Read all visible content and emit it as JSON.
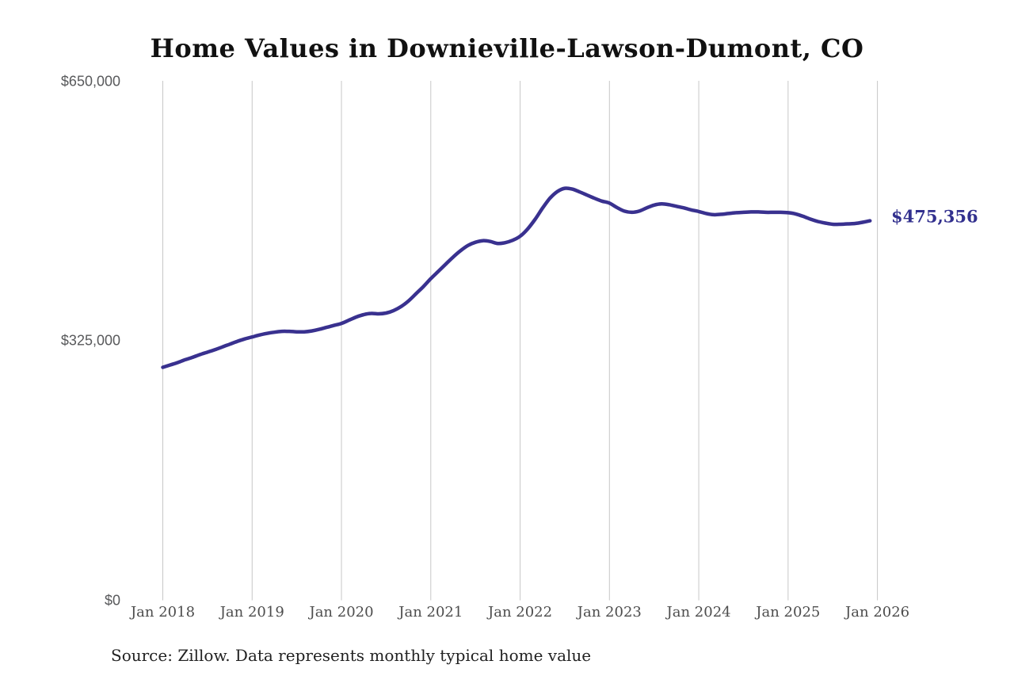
{
  "title": "Home Values in Downieville-Lawson-Dumont, CO",
  "source_note": "Source: Zillow. Data represents monthly typical home value",
  "end_label": "$475,356",
  "colors": {
    "line": "#39318f",
    "end_label_text": "#32308e",
    "title_text": "#111111",
    "y_axis_text": "#58595b",
    "x_axis_text": "#4d4d4d",
    "source_text": "#222222",
    "gridline": "#c7c7c7",
    "background": "#ffffff"
  },
  "chart_data": {
    "type": "line",
    "title": "Home Values in Downieville-Lawson-Dumont, CO",
    "x_interval": "monthly",
    "x_start_month": "2018-01",
    "x_end_month": "2025-12",
    "x_tick_labels": [
      "Jan 2018",
      "Jan 2019",
      "Jan 2020",
      "Jan 2021",
      "Jan 2022",
      "Jan 2023",
      "Jan 2024",
      "Jan 2025",
      "Jan 2026"
    ],
    "y_tick_labels": [
      "$0",
      "$325,000",
      "$650,000"
    ],
    "y_tick_values": [
      0,
      325000,
      650000
    ],
    "ylim": [
      0,
      650000
    ],
    "grid": "vertical-only",
    "legend": "none",
    "final_value": 475356,
    "series": [
      {
        "name": "Monthly typical home value",
        "color": "#39318f",
        "values": [
          292000,
          295000,
          298000,
          301500,
          304500,
          308000,
          311000,
          314000,
          317500,
          321000,
          324500,
          327500,
          330000,
          332500,
          334500,
          336000,
          337000,
          337000,
          336500,
          336500,
          337500,
          339500,
          342000,
          344500,
          347000,
          351000,
          355000,
          358000,
          359500,
          359000,
          360000,
          363000,
          368000,
          375000,
          384000,
          393000,
          403000,
          412000,
          421000,
          430000,
          438000,
          444500,
          448500,
          450500,
          449500,
          447000,
          448000,
          451000,
          456000,
          465000,
          477000,
          491000,
          503500,
          512000,
          516000,
          515000,
          511500,
          507500,
          503500,
          500000,
          497500,
          492000,
          487500,
          486000,
          487500,
          491500,
          495000,
          496500,
          495500,
          493500,
          491500,
          489000,
          487000,
          484500,
          483000,
          483500,
          484500,
          485500,
          486000,
          486500,
          486500,
          486000,
          486000,
          486000,
          485500,
          484000,
          481000,
          477500,
          474500,
          472500,
          471000,
          471000,
          471500,
          472000,
          473500,
          475356
        ]
      }
    ]
  }
}
